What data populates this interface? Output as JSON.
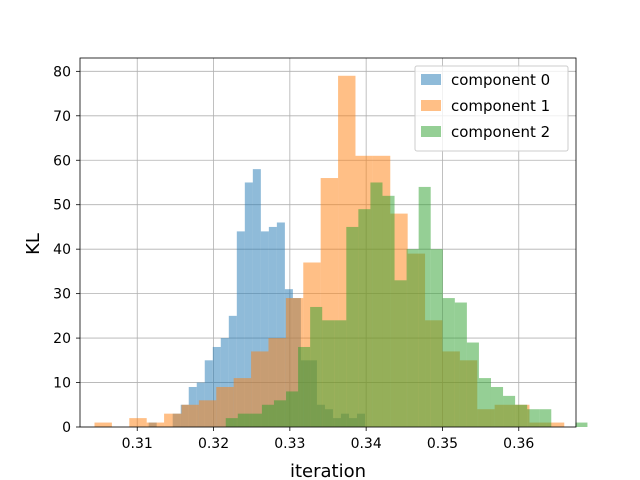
{
  "chart_data": {
    "type": "histogram",
    "xlabel": "iteration",
    "ylabel": "KL",
    "xlim": [
      0.3025,
      0.3675
    ],
    "ylim": [
      0,
      83
    ],
    "xticks": [
      0.31,
      0.32,
      0.33,
      0.34,
      0.35,
      0.36
    ],
    "xtick_labels": [
      "0.31",
      "0.32",
      "0.33",
      "0.34",
      "0.35",
      "0.36"
    ],
    "yticks": [
      0,
      10,
      20,
      30,
      40,
      50,
      60,
      70,
      80
    ],
    "ytick_labels": [
      "0",
      "10",
      "20",
      "30",
      "40",
      "50",
      "60",
      "70",
      "80"
    ],
    "grid": true,
    "legend_position": "top-right",
    "series": [
      {
        "name": "component 0",
        "color": "#1f77b4",
        "alpha": 0.5,
        "bin_start": 0.3115,
        "bin_width": 0.00105,
        "counts": [
          1,
          0,
          0,
          3,
          5,
          9,
          10,
          15,
          18,
          20,
          25,
          44,
          55,
          58,
          44,
          45,
          46,
          31,
          29,
          15,
          15,
          5,
          4,
          2,
          3,
          2,
          3
        ]
      },
      {
        "name": "component 1",
        "color": "#ff7f0e",
        "alpha": 0.5,
        "bin_start": 0.3044,
        "bin_width": 0.00228,
        "counts": [
          1,
          0,
          2,
          1,
          3,
          5,
          6,
          9,
          11,
          17,
          20,
          29,
          37,
          56,
          79,
          61,
          61,
          48,
          39,
          24,
          17,
          15,
          4,
          5,
          5,
          1,
          1
        ]
      },
      {
        "name": "component 2",
        "color": "#2ca02c",
        "alpha": 0.5,
        "bin_start": 0.3216,
        "bin_width": 0.00158,
        "counts": [
          2,
          3,
          3,
          5,
          6,
          8,
          18,
          27,
          24,
          24,
          45,
          49,
          55,
          52,
          33,
          40,
          54,
          40,
          29,
          28,
          19,
          11,
          9,
          7,
          5,
          4,
          4,
          0,
          0,
          1
        ]
      }
    ]
  }
}
